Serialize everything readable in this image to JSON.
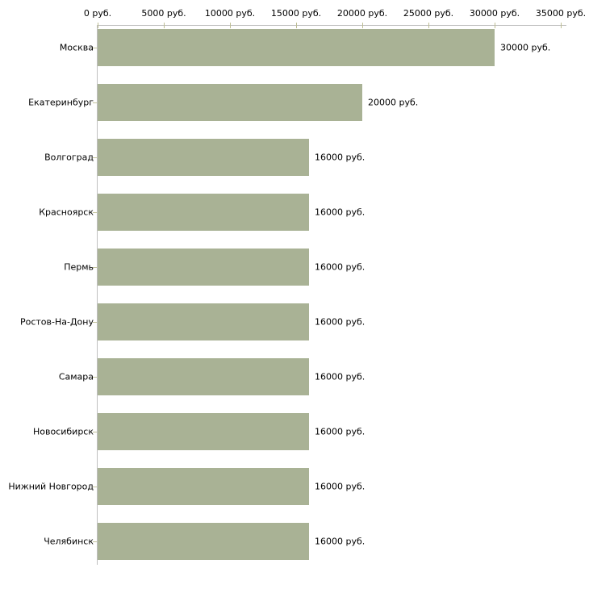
{
  "chart_data": {
    "type": "bar",
    "orientation": "horizontal",
    "title": "",
    "xlabel": "",
    "ylabel": "",
    "xlim": [
      0,
      35000
    ],
    "grid": false,
    "legend": false,
    "x_ticks": [
      0,
      5000,
      10000,
      15000,
      20000,
      25000,
      30000,
      35000
    ],
    "x_tick_labels": [
      "0 руб.",
      "5000 руб.",
      "10000 руб.",
      "15000 руб.",
      "20000 руб.",
      "25000 руб.",
      "30000 руб.",
      "35000 руб."
    ],
    "categories": [
      "Москва",
      "Екатеринбург",
      "Волгоград",
      "Красноярск",
      "Пермь",
      "Ростов-На-Дону",
      "Самара",
      "Новосибирск",
      "Нижний Новгород",
      "Челябинск"
    ],
    "values": [
      30000,
      20000,
      16000,
      16000,
      16000,
      16000,
      16000,
      16000,
      16000,
      16000
    ],
    "value_labels": [
      "30000 руб.",
      "20000 руб.",
      "16000 руб.",
      "16000 руб.",
      "16000 руб.",
      "16000 руб.",
      "16000 руб.",
      "16000 руб.",
      "16000 руб.",
      "16000 руб."
    ],
    "colors": {
      "bar": "#a9b295",
      "axis": "#c0c0c0",
      "x_tick": "#bdbd93",
      "y_tick": "#c3c39b",
      "text": "#000000",
      "background": "#ffffff"
    }
  }
}
